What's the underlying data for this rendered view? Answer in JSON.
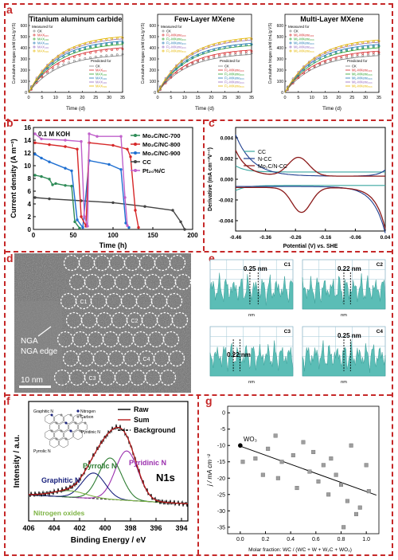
{
  "panel_labels": [
    "a",
    "b",
    "c",
    "d",
    "e",
    "f",
    "g"
  ],
  "colors": {
    "frame": "#c62828",
    "teal": "#5bbdb6"
  },
  "panel_a": {
    "charts": [
      {
        "title": "Titanium aluminum carbide",
        "ylabel": "Cumulative biogas yield (mL/g VS)",
        "xlabel": "Time (d)",
        "measured_head": "Measured for",
        "predicted_head": "Predicted for",
        "legend": [
          "CK",
          "MAX₁₀₀",
          "MAX₂₀₀",
          "MAX₃₀₀",
          "MAX₄₀₀",
          "MAX₅₀₀"
        ]
      },
      {
        "title": "Few-Layer MXene",
        "ylabel": "Cumulative biogas yield (mL/g VS)",
        "xlabel": "Time (d)",
        "measured_head": "Measured for",
        "predicted_head": "Predicted for",
        "legend": [
          "CK",
          "FL-MXene₁₀₀",
          "FL-MXene₂₀₀",
          "FL-MXene₃₀₀",
          "FL-MXene₄₀₀",
          "FL-MXene₅₀₀"
        ]
      },
      {
        "title": "Multi-Layer MXene",
        "ylabel": "Cumulative biogas yield (mL/g VS)",
        "xlabel": "Time (d)",
        "measured_head": "Measured for",
        "predicted_head": "Predicted for",
        "legend": [
          "CK",
          "ML-MXene₁₀₀",
          "ML-MXene₂₀₀",
          "ML-MXene₃₀₀",
          "ML-MXene₄₀₀",
          "ML-MXene₅₀₀"
        ]
      }
    ],
    "xticks": [
      "0",
      "5",
      "10",
      "15",
      "20",
      "25",
      "30",
      "35"
    ],
    "yticks": [
      "0",
      "100",
      "200",
      "300",
      "400",
      "500",
      "600"
    ],
    "series_colors": [
      "#7f7f7f",
      "#d62728",
      "#2ca02c",
      "#1f77b4",
      "#9467bd",
      "#e6b800"
    ],
    "final_values": [
      [
        330,
        400,
        430,
        460,
        480,
        500
      ],
      [
        340,
        380,
        420,
        440,
        470,
        490
      ],
      [
        330,
        370,
        400,
        430,
        450,
        470
      ]
    ]
  },
  "panel_b": {
    "note": "0.1 M KOH",
    "ylabel": "Current density (A m⁻²)",
    "xlabel": "Time (h)",
    "xticks": [
      "0",
      "50",
      "100",
      "150",
      "200"
    ],
    "yticks": [
      "0",
      "2",
      "4",
      "6",
      "8",
      "10",
      "12",
      "14",
      "16"
    ],
    "legend": [
      "Mo₂C/NC-700",
      "Mo₂C/NC-800",
      "Mo₂C/NC-900",
      "CC",
      "Pt₂₀%/C"
    ],
    "series_colors": [
      "#2e8b57",
      "#d62728",
      "#1f6fd1",
      "#444444",
      "#c061cb"
    ]
  },
  "panel_c": {
    "ylabel": "Derivative (mA cm⁻²V⁻¹)",
    "xlabel": "Potential (V) vs. SHE",
    "xticks": [
      "-0.46",
      "-0.36",
      "-0.26",
      "-0.16",
      "-0.06",
      "0.04"
    ],
    "yticks": [
      "0.004",
      "0.002",
      "0.000",
      "-0.002",
      "-0.004"
    ],
    "legend": [
      "CC",
      "N-CC",
      "Mo₂C/N-CC"
    ],
    "series_colors": [
      "#3aa6a0",
      "#1f3f8f",
      "#8b1a1a"
    ]
  },
  "panel_d": {
    "annotation": "NGA edge",
    "scale": "10 nm",
    "circle_labels": [
      "C1",
      "C2",
      "C3",
      "C4"
    ]
  },
  "panel_e": {
    "subplots": [
      {
        "tag": "C1",
        "spacing": "0.25 nm"
      },
      {
        "tag": "C2",
        "spacing": "0.22 nm"
      },
      {
        "tag": "C3",
        "spacing": "0.22 nm"
      },
      {
        "tag": "C4",
        "spacing": "0.25 nm"
      }
    ],
    "xlabel": "nm"
  },
  "panel_f": {
    "title": "N1s",
    "legend": [
      "Raw",
      "Sum",
      "Background"
    ],
    "peaks": [
      "Pyrrolic N",
      "Pyridinic N",
      "Graphitic N",
      "Nitrogen oxides"
    ],
    "inset_labels": [
      "Graphitic N",
      "Nitrogen",
      "Carbon",
      "Pyridinic N",
      "Pyrrolic N"
    ],
    "ylabel": "Intensity / a.u.",
    "xlabel": "Binding Energy / eV",
    "xticks": [
      "406",
      "404",
      "402",
      "400",
      "398",
      "396",
      "394"
    ]
  },
  "chart_data": {
    "type": "scatter",
    "title": "",
    "xlabel": "Molar fraction: WC / (WC + W + W₂C + WO₂)",
    "ylabel": "j / mA cm⁻²",
    "xlim": [
      -0.1,
      1.1
    ],
    "ylim": [
      -37,
      2
    ],
    "xticks": [
      0.0,
      0.2,
      0.4,
      0.6,
      0.8,
      1.0
    ],
    "yticks": [
      0,
      -5,
      -10,
      -15,
      -20,
      -25,
      -30,
      -35
    ],
    "highlight": {
      "label": "WO₃",
      "x": 0.0,
      "y": -10
    },
    "points": [
      {
        "x": 0.02,
        "y": -15
      },
      {
        "x": 0.12,
        "y": -14
      },
      {
        "x": 0.18,
        "y": -19
      },
      {
        "x": 0.22,
        "y": -11
      },
      {
        "x": 0.28,
        "y": -7
      },
      {
        "x": 0.3,
        "y": -20
      },
      {
        "x": 0.33,
        "y": -15
      },
      {
        "x": 0.42,
        "y": -13
      },
      {
        "x": 0.45,
        "y": -23
      },
      {
        "x": 0.5,
        "y": -9
      },
      {
        "x": 0.55,
        "y": -18
      },
      {
        "x": 0.58,
        "y": -12
      },
      {
        "x": 0.62,
        "y": -21
      },
      {
        "x": 0.66,
        "y": -16
      },
      {
        "x": 0.7,
        "y": -25
      },
      {
        "x": 0.72,
        "y": -14
      },
      {
        "x": 0.76,
        "y": -19
      },
      {
        "x": 0.8,
        "y": -22
      },
      {
        "x": 0.82,
        "y": -35
      },
      {
        "x": 0.85,
        "y": -27
      },
      {
        "x": 0.88,
        "y": -10
      },
      {
        "x": 0.92,
        "y": -31
      },
      {
        "x": 0.95,
        "y": -29
      },
      {
        "x": 1.0,
        "y": -16
      },
      {
        "x": 1.02,
        "y": -24
      }
    ],
    "fit": {
      "x": [
        0.0,
        1.08
      ],
      "y": [
        -10.2,
        -25.2
      ]
    },
    "grid": false
  }
}
